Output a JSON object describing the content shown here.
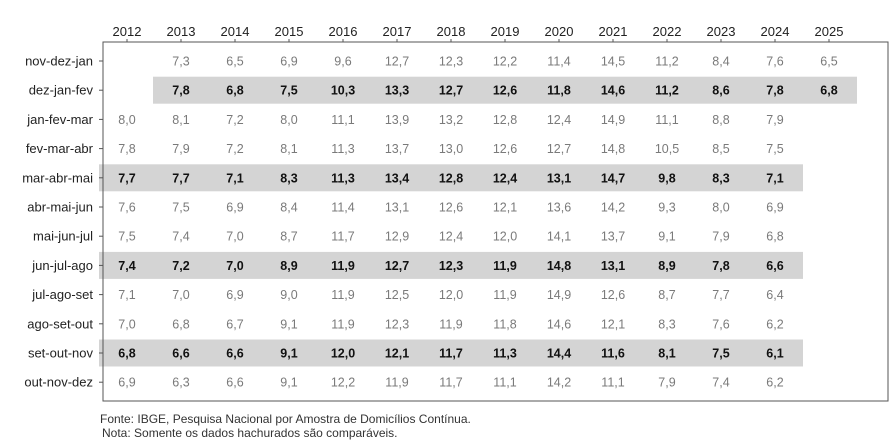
{
  "colors": {
    "highlight": "#d4d4d4",
    "normal_text": "#7a7a7a",
    "bold_text": "#111111",
    "label_text": "#222222",
    "axis": "#555555"
  },
  "chart_data": {
    "type": "table",
    "title": "",
    "columns": [
      "2012",
      "2013",
      "2014",
      "2015",
      "2016",
      "2017",
      "2018",
      "2019",
      "2020",
      "2021",
      "2022",
      "2023",
      "2024",
      "2025"
    ],
    "rows": [
      {
        "label": "nov-dez-jan",
        "highlight": false,
        "values": [
          null,
          "7,3",
          "6,5",
          "6,9",
          "9,6",
          "12,7",
          "12,3",
          "12,2",
          "11,4",
          "14,5",
          "11,2",
          "8,4",
          "7,6",
          "6,5"
        ]
      },
      {
        "label": "dez-jan-fev",
        "highlight": true,
        "values": [
          null,
          "7,8",
          "6,8",
          "7,5",
          "10,3",
          "13,3",
          "12,7",
          "12,6",
          "11,8",
          "14,6",
          "11,2",
          "8,6",
          "7,8",
          "6,8"
        ]
      },
      {
        "label": "jan-fev-mar",
        "highlight": false,
        "values": [
          "8,0",
          "8,1",
          "7,2",
          "8,0",
          "11,1",
          "13,9",
          "13,2",
          "12,8",
          "12,4",
          "14,9",
          "11,1",
          "8,8",
          "7,9",
          null
        ]
      },
      {
        "label": "fev-mar-abr",
        "highlight": false,
        "values": [
          "7,8",
          "7,9",
          "7,2",
          "8,1",
          "11,3",
          "13,7",
          "13,0",
          "12,6",
          "12,7",
          "14,8",
          "10,5",
          "8,5",
          "7,5",
          null
        ]
      },
      {
        "label": "mar-abr-mai",
        "highlight": true,
        "values": [
          "7,7",
          "7,7",
          "7,1",
          "8,3",
          "11,3",
          "13,4",
          "12,8",
          "12,4",
          "13,1",
          "14,7",
          "9,8",
          "8,3",
          "7,1",
          null
        ]
      },
      {
        "label": "abr-mai-jun",
        "highlight": false,
        "values": [
          "7,6",
          "7,5",
          "6,9",
          "8,4",
          "11,4",
          "13,1",
          "12,6",
          "12,1",
          "13,6",
          "14,2",
          "9,3",
          "8,0",
          "6,9",
          null
        ]
      },
      {
        "label": "mai-jun-jul",
        "highlight": false,
        "values": [
          "7,5",
          "7,4",
          "7,0",
          "8,7",
          "11,7",
          "12,9",
          "12,4",
          "12,0",
          "14,1",
          "13,7",
          "9,1",
          "7,9",
          "6,8",
          null
        ]
      },
      {
        "label": "jun-jul-ago",
        "highlight": true,
        "values": [
          "7,4",
          "7,2",
          "7,0",
          "8,9",
          "11,9",
          "12,7",
          "12,3",
          "11,9",
          "14,8",
          "13,1",
          "8,9",
          "7,8",
          "6,6",
          null
        ]
      },
      {
        "label": "jul-ago-set",
        "highlight": false,
        "values": [
          "7,1",
          "7,0",
          "6,9",
          "9,0",
          "11,9",
          "12,5",
          "12,0",
          "11,9",
          "14,9",
          "12,6",
          "8,7",
          "7,7",
          "6,4",
          null
        ]
      },
      {
        "label": "ago-set-out",
        "highlight": false,
        "values": [
          "7,0",
          "6,8",
          "6,7",
          "9,1",
          "11,9",
          "12,3",
          "11,9",
          "11,8",
          "14,6",
          "12,1",
          "8,3",
          "7,6",
          "6,2",
          null
        ]
      },
      {
        "label": "set-out-nov",
        "highlight": true,
        "values": [
          "6,8",
          "6,6",
          "6,6",
          "9,1",
          "12,0",
          "12,1",
          "11,7",
          "11,3",
          "14,4",
          "11,6",
          "8,1",
          "7,5",
          "6,1",
          null
        ]
      },
      {
        "label": "out-nov-dez",
        "highlight": false,
        "values": [
          "6,9",
          "6,3",
          "6,6",
          "9,1",
          "12,2",
          "11,9",
          "11,7",
          "11,1",
          "14,2",
          "11,1",
          "7,9",
          "7,4",
          "6,2",
          null
        ]
      }
    ]
  },
  "footer": {
    "source": "Fonte: IBGE, Pesquisa Nacional por Amostra de Domicílios Contínua.",
    "note": "Nota: Somente os dados hachurados são comparáveis."
  }
}
